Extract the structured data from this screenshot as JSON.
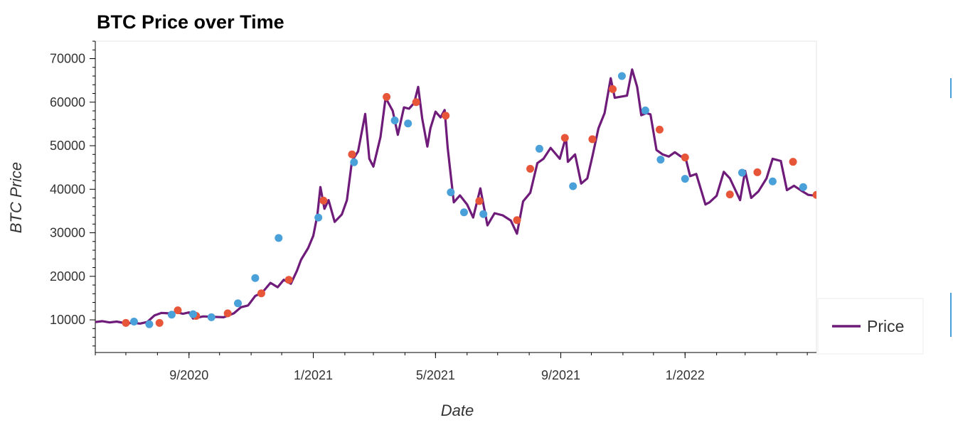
{
  "chart_data": {
    "type": "line",
    "title": "BTC Price over Time",
    "xlabel": "Date",
    "ylabel": "BTC Price",
    "x_range": [
      "2020-06-01",
      "2022-05-10"
    ],
    "ylim": [
      2500,
      74000
    ],
    "y_ticks": [
      10000,
      20000,
      30000,
      40000,
      50000,
      60000,
      70000
    ],
    "x_ticks": [
      {
        "date": "2020-09-01",
        "label": "9/2020"
      },
      {
        "date": "2021-01-01",
        "label": "1/2021"
      },
      {
        "date": "2021-05-01",
        "label": "5/2021"
      },
      {
        "date": "2021-09-01",
        "label": "9/2021"
      },
      {
        "date": "2022-01-01",
        "label": "1/2022"
      }
    ],
    "grid": false,
    "legend": {
      "position": "right",
      "entries": [
        "Price"
      ]
    },
    "colors": {
      "line": "#6e1b7a",
      "buy_marker": "#e8563a",
      "sell_marker": "#4aa0d8"
    },
    "series": [
      {
        "name": "Price",
        "points": [
          [
            "2020-06-01",
            9500
          ],
          [
            "2020-06-08",
            9700
          ],
          [
            "2020-06-15",
            9400
          ],
          [
            "2020-06-22",
            9600
          ],
          [
            "2020-07-01",
            9200
          ],
          [
            "2020-07-08",
            9300
          ],
          [
            "2020-07-15",
            9150
          ],
          [
            "2020-07-22",
            9500
          ],
          [
            "2020-07-29",
            11000
          ],
          [
            "2020-08-05",
            11600
          ],
          [
            "2020-08-12",
            11500
          ],
          [
            "2020-08-19",
            11800
          ],
          [
            "2020-08-26",
            11400
          ],
          [
            "2020-09-01",
            11700
          ],
          [
            "2020-09-05",
            10300
          ],
          [
            "2020-09-15",
            10800
          ],
          [
            "2020-09-25",
            10700
          ],
          [
            "2020-10-05",
            10600
          ],
          [
            "2020-10-15",
            11500
          ],
          [
            "2020-10-22",
            12900
          ],
          [
            "2020-10-29",
            13300
          ],
          [
            "2020-11-05",
            15500
          ],
          [
            "2020-11-12",
            16300
          ],
          [
            "2020-11-20",
            18500
          ],
          [
            "2020-11-27",
            17500
          ],
          [
            "2020-12-03",
            19200
          ],
          [
            "2020-12-10",
            18300
          ],
          [
            "2020-12-16",
            21300
          ],
          [
            "2020-12-20",
            23800
          ],
          [
            "2020-12-27",
            26500
          ],
          [
            "2021-01-01",
            29300
          ],
          [
            "2021-01-05",
            34000
          ],
          [
            "2021-01-08",
            40500
          ],
          [
            "2021-01-12",
            35500
          ],
          [
            "2021-01-16",
            37500
          ],
          [
            "2021-01-22",
            32500
          ],
          [
            "2021-01-29",
            34200
          ],
          [
            "2021-02-03",
            37500
          ],
          [
            "2021-02-08",
            46500
          ],
          [
            "2021-02-14",
            48700
          ],
          [
            "2021-02-21",
            57300
          ],
          [
            "2021-02-25",
            47000
          ],
          [
            "2021-03-01",
            45200
          ],
          [
            "2021-03-08",
            52000
          ],
          [
            "2021-03-13",
            61000
          ],
          [
            "2021-03-20",
            58000
          ],
          [
            "2021-03-25",
            52500
          ],
          [
            "2021-03-31",
            58800
          ],
          [
            "2021-04-05",
            58500
          ],
          [
            "2021-04-10",
            59800
          ],
          [
            "2021-04-14",
            63500
          ],
          [
            "2021-04-18",
            56200
          ],
          [
            "2021-04-23",
            49800
          ],
          [
            "2021-04-26",
            54000
          ],
          [
            "2021-05-01",
            57800
          ],
          [
            "2021-05-06",
            56500
          ],
          [
            "2021-05-10",
            58200
          ],
          [
            "2021-05-13",
            49500
          ],
          [
            "2021-05-19",
            37000
          ],
          [
            "2021-05-25",
            38600
          ],
          [
            "2021-06-01",
            36500
          ],
          [
            "2021-06-07",
            33500
          ],
          [
            "2021-06-14",
            40200
          ],
          [
            "2021-06-21",
            31700
          ],
          [
            "2021-06-28",
            34500
          ],
          [
            "2021-07-06",
            34000
          ],
          [
            "2021-07-14",
            32800
          ],
          [
            "2021-07-20",
            29800
          ],
          [
            "2021-07-26",
            37200
          ],
          [
            "2021-08-02",
            39200
          ],
          [
            "2021-08-09",
            46000
          ],
          [
            "2021-08-15",
            47000
          ],
          [
            "2021-08-22",
            49500
          ],
          [
            "2021-08-31",
            47000
          ],
          [
            "2021-09-06",
            52000
          ],
          [
            "2021-09-08",
            46300
          ],
          [
            "2021-09-15",
            48000
          ],
          [
            "2021-09-21",
            41300
          ],
          [
            "2021-09-27",
            42500
          ],
          [
            "2021-10-02",
            47500
          ],
          [
            "2021-10-08",
            54000
          ],
          [
            "2021-10-14",
            57500
          ],
          [
            "2021-10-20",
            65500
          ],
          [
            "2021-10-24",
            61000
          ],
          [
            "2021-10-31",
            61300
          ],
          [
            "2021-11-05",
            61500
          ],
          [
            "2021-11-10",
            67500
          ],
          [
            "2021-11-15",
            63500
          ],
          [
            "2021-11-19",
            57000
          ],
          [
            "2021-11-24",
            57500
          ],
          [
            "2021-11-28",
            57200
          ],
          [
            "2021-12-04",
            49000
          ],
          [
            "2021-12-10",
            48000
          ],
          [
            "2021-12-16",
            47500
          ],
          [
            "2021-12-22",
            48500
          ],
          [
            "2021-12-28",
            47500
          ],
          [
            "2022-01-01",
            47700
          ],
          [
            "2022-01-06",
            43000
          ],
          [
            "2022-01-12",
            43500
          ],
          [
            "2022-01-21",
            36500
          ],
          [
            "2022-01-25",
            37000
          ],
          [
            "2022-02-01",
            38500
          ],
          [
            "2022-02-08",
            44000
          ],
          [
            "2022-02-14",
            42500
          ],
          [
            "2022-02-24",
            37500
          ],
          [
            "2022-03-01",
            44200
          ],
          [
            "2022-03-07",
            38000
          ],
          [
            "2022-03-14",
            39500
          ],
          [
            "2022-03-22",
            42500
          ],
          [
            "2022-03-28",
            47000
          ],
          [
            "2022-04-05",
            46500
          ],
          [
            "2022-04-11",
            39800
          ],
          [
            "2022-04-18",
            40800
          ],
          [
            "2022-04-25",
            39700
          ],
          [
            "2022-05-02",
            38700
          ],
          [
            "2022-05-10",
            38500
          ]
        ]
      }
    ],
    "markers": {
      "buy": [
        [
          "2020-07-01",
          9300
        ],
        [
          "2020-08-03",
          9300
        ],
        [
          "2020-08-21",
          12200
        ],
        [
          "2020-09-08",
          10900
        ],
        [
          "2020-10-09",
          11500
        ],
        [
          "2020-11-11",
          16100
        ],
        [
          "2020-12-08",
          19200
        ],
        [
          "2021-01-11",
          37400
        ],
        [
          "2021-02-08",
          48000
        ],
        [
          "2021-03-14",
          61200
        ],
        [
          "2021-04-12",
          60000
        ],
        [
          "2021-05-11",
          56900
        ],
        [
          "2021-06-13",
          37300
        ],
        [
          "2021-07-20",
          32900
        ],
        [
          "2021-08-02",
          44700
        ],
        [
          "2021-09-05",
          51800
        ],
        [
          "2021-10-02",
          51500
        ],
        [
          "2021-10-22",
          63000
        ],
        [
          "2021-12-07",
          53700
        ],
        [
          "2022-01-01",
          47300
        ],
        [
          "2022-02-14",
          38800
        ],
        [
          "2022-03-13",
          43900
        ],
        [
          "2022-04-17",
          46300
        ],
        [
          "2022-05-10",
          38700
        ]
      ],
      "sell": [
        [
          "2020-07-09",
          9600
        ],
        [
          "2020-07-24",
          9000
        ],
        [
          "2020-08-15",
          11200
        ],
        [
          "2020-09-05",
          11300
        ],
        [
          "2020-09-23",
          10600
        ],
        [
          "2020-10-19",
          13800
        ],
        [
          "2020-11-05",
          19600
        ],
        [
          "2020-11-28",
          28800
        ],
        [
          "2021-01-06",
          33500
        ],
        [
          "2021-02-10",
          46200
        ],
        [
          "2021-03-22",
          55800
        ],
        [
          "2021-04-04",
          55100
        ],
        [
          "2021-05-16",
          39300
        ],
        [
          "2021-05-29",
          34700
        ],
        [
          "2021-06-17",
          34300
        ],
        [
          "2021-08-11",
          49300
        ],
        [
          "2021-09-13",
          40700
        ],
        [
          "2021-10-31",
          66000
        ],
        [
          "2021-11-23",
          58100
        ],
        [
          "2021-12-08",
          46800
        ],
        [
          "2022-01-01",
          42400
        ],
        [
          "2022-02-26",
          43800
        ],
        [
          "2022-03-28",
          41800
        ],
        [
          "2022-04-27",
          40500
        ]
      ]
    }
  }
}
